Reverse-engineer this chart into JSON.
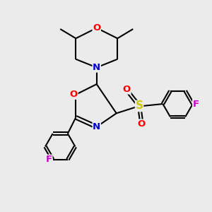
{
  "background_color": "#ebebeb",
  "bond_color": "#000000",
  "atom_colors": {
    "O": "#ff0000",
    "N": "#0000cc",
    "F": "#cc00cc",
    "S": "#cccc00",
    "C": "#000000"
  },
  "bond_width": 1.5,
  "font_size_atom": 9.5,
  "fig_size": [
    3.0,
    3.0
  ],
  "dpi": 100
}
